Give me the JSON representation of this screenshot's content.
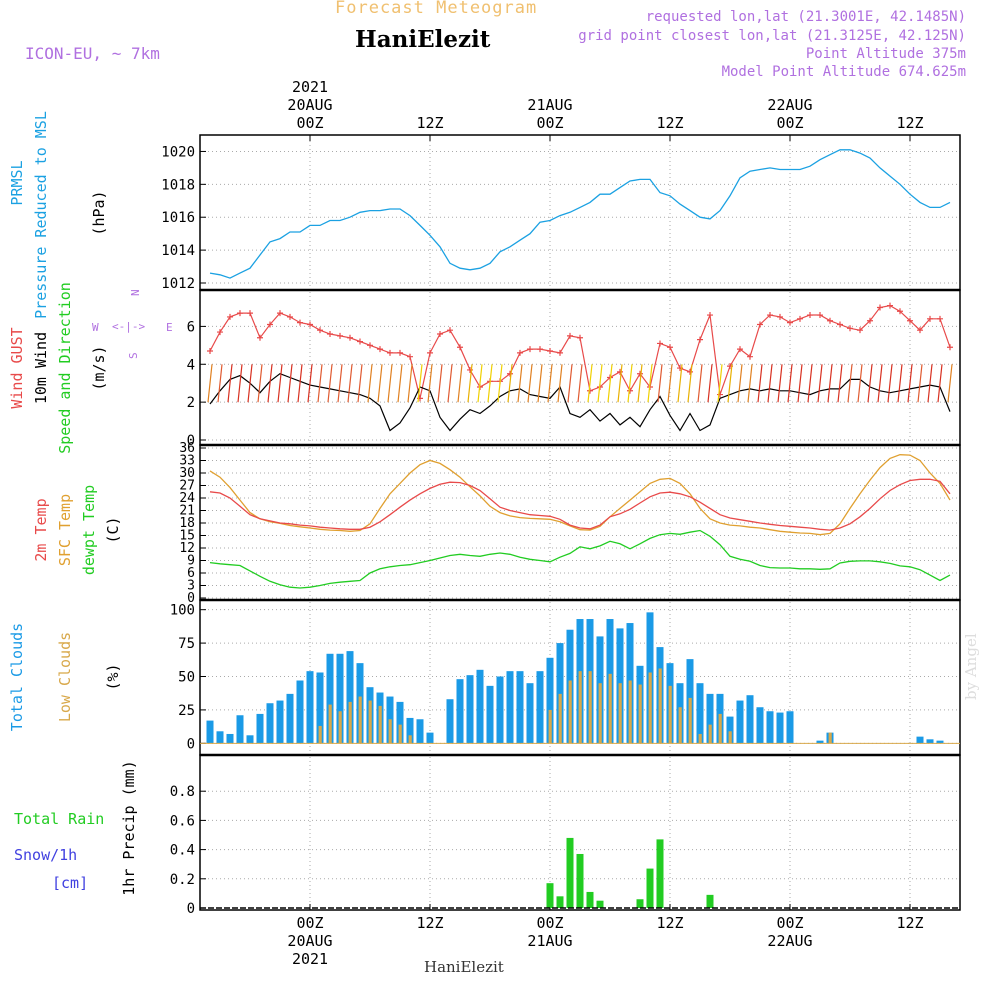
{
  "header": {
    "forecast_title": "Forecast Meteogram",
    "model": "ICON-EU, ~ 7km",
    "station": "HaniElezit",
    "requested": "requested lon,lat (21.3001E, 42.1485N)",
    "closest": "grid point closest lon,lat (21.3125E, 42.125N)",
    "point_alt": "Point Altitude 375m",
    "model_alt": "Model Point Altitude 674.625m",
    "watermark": "by Angel",
    "footer_station": "HaniElezit"
  },
  "time_axis": {
    "year": "2021",
    "labels": [
      {
        "hour": 0,
        "time": "00Z",
        "date": "20AUG",
        "year": "2021"
      },
      {
        "hour": 12,
        "time": "12Z",
        "date": "",
        "year": ""
      },
      {
        "hour": 24,
        "time": "00Z",
        "date": "21AUG",
        "year": ""
      },
      {
        "hour": 36,
        "time": "12Z",
        "date": "",
        "year": ""
      },
      {
        "hour": 48,
        "time": "00Z",
        "date": "22AUG",
        "year": ""
      },
      {
        "hour": 60,
        "time": "12Z",
        "date": "",
        "year": ""
      }
    ],
    "range": [
      -11,
      65
    ]
  },
  "colors": {
    "pressure": "#1ba1e2",
    "gust": "#e84a4a",
    "wind": "#000000",
    "temp2m": "#e84a4a",
    "sfc": "#e0a030",
    "dewpt": "#22cc22",
    "total_clouds": "#1a9ae6",
    "low_clouds": "#d8a84a",
    "rain": "#22cc22",
    "snow": "#4040e0",
    "header_purple": "#b070e0",
    "title_orange": "#f0c070"
  },
  "labels": {
    "pressure": [
      "PRMSL",
      "Pressure Reduced to MSL",
      "(hPa)"
    ],
    "wind": [
      "Wind GUST",
      "10m Wind",
      "Speed and Direction",
      "(m/s)"
    ],
    "compass": {
      "w": "W",
      "e": "E",
      "n": "N",
      "s": "S"
    },
    "temp": [
      "2m Temp",
      "SFC Temp",
      "dewpt Temp",
      "(C)"
    ],
    "clouds": [
      "Total Clouds",
      "Low Clouds",
      "(%)"
    ],
    "precip": [
      "Total  Rain",
      "Snow/1h",
      "[cm]",
      "1hr Precip (mm)"
    ]
  },
  "chart_data": [
    {
      "type": "line",
      "name": "pressure",
      "ylim": [
        1012,
        1021
      ],
      "yticks": [
        1012,
        1014,
        1016,
        1018,
        1020
      ],
      "x": [
        -10,
        -9,
        -8,
        -7,
        -6,
        -5,
        -4,
        -3,
        -2,
        -1,
        0,
        1,
        2,
        3,
        4,
        5,
        6,
        7,
        8,
        9,
        10,
        11,
        12,
        13,
        14,
        15,
        16,
        17,
        18,
        19,
        20,
        21,
        22,
        23,
        24,
        25,
        26,
        27,
        28,
        29,
        30,
        31,
        32,
        33,
        34,
        35,
        36,
        37,
        38,
        39,
        40,
        41,
        42,
        43,
        44,
        45,
        46,
        47,
        48,
        49,
        50,
        51,
        52,
        53,
        54,
        55,
        56,
        57,
        58,
        59,
        60,
        61,
        62,
        63,
        64
      ],
      "y": [
        1012.6,
        1012.5,
        1012.3,
        1012.6,
        1012.9,
        1013.7,
        1014.5,
        1014.7,
        1015.1,
        1015.1,
        1015.5,
        1015.5,
        1015.8,
        1015.8,
        1016.0,
        1016.3,
        1016.4,
        1016.4,
        1016.5,
        1016.5,
        1016.1,
        1015.5,
        1014.9,
        1014.2,
        1013.2,
        1012.9,
        1012.8,
        1012.9,
        1013.2,
        1013.9,
        1014.2,
        1014.6,
        1015.0,
        1015.7,
        1015.8,
        1016.1,
        1016.3,
        1016.6,
        1016.9,
        1017.4,
        1017.4,
        1017.8,
        1018.2,
        1018.3,
        1018.3,
        1017.5,
        1017.3,
        1016.8,
        1016.4,
        1016.0,
        1015.9,
        1016.4,
        1017.3,
        1018.4,
        1018.8,
        1018.9,
        1019.0,
        1018.9,
        1018.9,
        1018.9,
        1019.1,
        1019.5,
        1019.8,
        1020.1,
        1020.1,
        1019.9,
        1019.6,
        1019.0,
        1018.5,
        1018.0,
        1017.4,
        1016.9,
        1016.6,
        1016.6,
        1016.9
      ]
    },
    {
      "type": "line",
      "name": "wind",
      "ylim": [
        0,
        7.5
      ],
      "yticks": [
        0,
        2,
        4,
        6
      ],
      "x": [
        -10,
        -9,
        -8,
        -7,
        -6,
        -5,
        -4,
        -3,
        -2,
        -1,
        0,
        1,
        2,
        3,
        4,
        5,
        6,
        7,
        8,
        9,
        10,
        11,
        12,
        13,
        14,
        15,
        16,
        17,
        18,
        19,
        20,
        21,
        22,
        23,
        24,
        25,
        26,
        27,
        28,
        29,
        30,
        31,
        32,
        33,
        34,
        35,
        36,
        37,
        38,
        39,
        40,
        41,
        42,
        43,
        44,
        45,
        46,
        47,
        48,
        49,
        50,
        51,
        52,
        53,
        54,
        55,
        56,
        57,
        58,
        59,
        60,
        61,
        62,
        63,
        64
      ],
      "gust": [
        4.7,
        5.7,
        6.5,
        6.7,
        6.7,
        5.4,
        6.1,
        6.7,
        6.5,
        6.2,
        6.1,
        5.8,
        5.6,
        5.5,
        5.4,
        5.2,
        5.0,
        4.8,
        4.6,
        4.6,
        4.4,
        2.2,
        4.6,
        5.6,
        5.8,
        4.9,
        3.7,
        2.8,
        3.1,
        3.1,
        3.5,
        4.6,
        4.8,
        4.8,
        4.7,
        4.6,
        5.5,
        5.4,
        2.6,
        2.8,
        3.3,
        3.6,
        2.6,
        3.5,
        2.8,
        5.1,
        4.9,
        3.8,
        3.6,
        5.3,
        6.6,
        2.4,
        3.9,
        4.8,
        4.4,
        6.1,
        6.6,
        6.5,
        6.2,
        6.4,
        6.6,
        6.6,
        6.3,
        6.1,
        5.9,
        5.8,
        6.3,
        7.0,
        7.1,
        6.8,
        6.3,
        5.8,
        6.4,
        6.4,
        4.9
      ],
      "speed": [
        1.9,
        2.6,
        3.2,
        3.4,
        3.0,
        2.5,
        3.1,
        3.5,
        3.3,
        3.1,
        2.9,
        2.8,
        2.7,
        2.6,
        2.5,
        2.4,
        2.2,
        1.8,
        0.5,
        0.9,
        1.7,
        2.8,
        2.6,
        1.2,
        0.5,
        1.1,
        1.6,
        1.4,
        1.8,
        2.3,
        2.6,
        2.7,
        2.4,
        2.3,
        2.2,
        2.8,
        1.4,
        1.2,
        1.6,
        1.0,
        1.4,
        0.8,
        1.2,
        0.7,
        1.6,
        2.3,
        1.3,
        0.5,
        1.4,
        0.5,
        0.8,
        2.2,
        2.4,
        2.6,
        2.7,
        2.6,
        2.7,
        2.6,
        2.6,
        2.5,
        2.4,
        2.6,
        2.7,
        2.7,
        3.2,
        3.2,
        2.8,
        2.6,
        2.5,
        2.6,
        2.7,
        2.8,
        2.9,
        2.8,
        1.5
      ],
      "arrow_rows": [
        4,
        3,
        2
      ]
    },
    {
      "type": "line",
      "name": "temperature",
      "ylim": [
        0,
        36
      ],
      "yticks": [
        0,
        3,
        6,
        9,
        12,
        15,
        18,
        21,
        24,
        27,
        30,
        33,
        36
      ],
      "x": [
        -10,
        -9,
        -8,
        -7,
        -6,
        -5,
        -4,
        -3,
        -2,
        -1,
        0,
        1,
        2,
        3,
        4,
        5,
        6,
        7,
        8,
        9,
        10,
        11,
        12,
        13,
        14,
        15,
        16,
        17,
        18,
        19,
        20,
        21,
        22,
        23,
        24,
        25,
        26,
        27,
        28,
        29,
        30,
        31,
        32,
        33,
        34,
        35,
        36,
        37,
        38,
        39,
        40,
        41,
        42,
        43,
        44,
        45,
        46,
        47,
        48,
        49,
        50,
        51,
        52,
        53,
        54,
        55,
        56,
        57,
        58,
        59,
        60,
        61,
        62,
        63,
        64
      ],
      "temp2m": [
        25.5,
        25.2,
        24.0,
        22.0,
        20.0,
        19.0,
        18.5,
        18.0,
        17.8,
        17.5,
        17.3,
        17.0,
        16.8,
        16.6,
        16.5,
        16.5,
        17.0,
        18.3,
        20.0,
        21.8,
        23.5,
        25.0,
        26.3,
        27.3,
        27.8,
        27.7,
        27.0,
        25.8,
        23.8,
        21.8,
        21.0,
        20.5,
        20.0,
        19.8,
        19.6,
        18.9,
        17.5,
        16.8,
        16.6,
        17.5,
        19.5,
        20.2,
        21.3,
        22.8,
        24.3,
        25.2,
        25.4,
        25.0,
        24.3,
        23.0,
        21.5,
        20.0,
        19.2,
        18.8,
        18.4,
        18.0,
        17.7,
        17.4,
        17.2,
        17.0,
        16.8,
        16.5,
        16.3,
        16.8,
        17.8,
        19.5,
        21.5,
        23.8,
        25.8,
        27.2,
        28.2,
        28.5,
        28.5,
        28.0,
        25.0
      ],
      "sfc": [
        30.5,
        29.0,
        26.5,
        23.5,
        20.5,
        19.0,
        18.3,
        17.9,
        17.4,
        17.1,
        16.8,
        16.5,
        16.3,
        16.2,
        16.0,
        16.2,
        17.8,
        21.5,
        25.0,
        27.5,
        30.0,
        32.0,
        33.0,
        32.3,
        30.8,
        29.0,
        26.7,
        24.5,
        22.0,
        20.5,
        19.7,
        19.3,
        19.1,
        19.0,
        18.9,
        18.3,
        17.3,
        16.4,
        16.3,
        17.2,
        19.5,
        21.5,
        23.5,
        25.5,
        27.5,
        28.5,
        28.7,
        27.5,
        25.0,
        21.5,
        19.0,
        18.0,
        17.5,
        17.3,
        17.0,
        16.8,
        16.4,
        16.0,
        15.8,
        15.6,
        15.5,
        15.2,
        15.5,
        17.8,
        21.5,
        25.0,
        28.3,
        31.3,
        33.5,
        34.4,
        34.3,
        33.0,
        30.0,
        27.5,
        23.5
      ],
      "dewpt": [
        8.5,
        8.2,
        8.0,
        7.8,
        6.5,
        5.2,
        4.0,
        3.2,
        2.6,
        2.4,
        2.6,
        3.0,
        3.5,
        3.8,
        4.0,
        4.2,
        6.0,
        7.0,
        7.5,
        7.8,
        8.0,
        8.5,
        9.0,
        9.6,
        10.2,
        10.5,
        10.2,
        10.0,
        10.5,
        10.8,
        10.5,
        9.8,
        9.3,
        9.0,
        8.7,
        9.8,
        10.7,
        12.3,
        11.8,
        12.5,
        13.6,
        13.0,
        11.8,
        13.0,
        14.3,
        15.2,
        15.5,
        15.3,
        15.8,
        16.2,
        14.8,
        12.8,
        10.0,
        9.3,
        8.8,
        7.8,
        7.3,
        7.2,
        7.2,
        7.0,
        7.0,
        6.9,
        7.0,
        8.4,
        8.8,
        8.9,
        8.9,
        8.7,
        8.3,
        7.7,
        7.5,
        6.8,
        5.5,
        4.2,
        5.5
      ]
    },
    {
      "type": "bar",
      "name": "clouds",
      "ylim": [
        -5,
        105
      ],
      "yticks": [
        0,
        25,
        50,
        75,
        100
      ],
      "x": [
        -10,
        -9,
        -8,
        -7,
        -6,
        -5,
        -4,
        -3,
        -2,
        -1,
        0,
        1,
        2,
        3,
        4,
        5,
        6,
        7,
        8,
        9,
        10,
        11,
        12,
        13,
        14,
        15,
        16,
        17,
        18,
        19,
        20,
        21,
        22,
        23,
        24,
        25,
        26,
        27,
        28,
        29,
        30,
        31,
        32,
        33,
        34,
        35,
        36,
        37,
        38,
        39,
        40,
        41,
        42,
        43,
        44,
        45,
        46,
        47,
        48,
        49,
        50,
        51,
        52,
        53,
        54,
        55,
        56,
        57,
        58,
        59,
        60,
        61,
        62,
        63,
        64
      ],
      "total": [
        17,
        9,
        7,
        21,
        6,
        22,
        30,
        32,
        37,
        47,
        54,
        53,
        67,
        67,
        69,
        60,
        42,
        38,
        35,
        31,
        19,
        18,
        8,
        0,
        33,
        48,
        51,
        55,
        43,
        50,
        54,
        54,
        45,
        54,
        64,
        75,
        85,
        93,
        93,
        80,
        93,
        86,
        90,
        58,
        98,
        72,
        60,
        45,
        63,
        45,
        37,
        37,
        20,
        32,
        36,
        27,
        24,
        23,
        24,
        0,
        0,
        2,
        8,
        0,
        0,
        0,
        0,
        0,
        0,
        0,
        0,
        5,
        3,
        2,
        0
      ],
      "low": [
        0,
        0,
        0,
        0,
        0,
        0,
        0,
        0,
        0,
        0,
        0,
        13,
        29,
        24,
        31,
        35,
        32,
        28,
        18,
        14,
        6,
        0,
        0,
        0,
        0,
        0,
        0,
        0,
        0,
        0,
        0,
        0,
        0,
        0,
        25,
        37,
        47,
        54,
        54,
        45,
        52,
        45,
        47,
        44,
        53,
        56,
        43,
        27,
        34,
        7,
        14,
        22,
        9,
        0,
        0,
        0,
        0,
        0,
        0,
        0,
        0,
        0,
        8,
        0,
        0,
        0,
        0,
        0,
        0,
        0,
        0,
        0,
        0,
        0,
        0
      ]
    },
    {
      "type": "bar",
      "name": "precip",
      "ylim": [
        0,
        1.0
      ],
      "yticks": [
        0,
        0.2,
        0.4,
        0.6,
        0.8
      ],
      "x": [
        24,
        25,
        26,
        27,
        28,
        29,
        30,
        33,
        34,
        35,
        40
      ],
      "rain": [
        0.17,
        0.08,
        0.48,
        0.37,
        0.11,
        0.05,
        0.0,
        0.06,
        0.27,
        0.47,
        0.09
      ]
    }
  ]
}
